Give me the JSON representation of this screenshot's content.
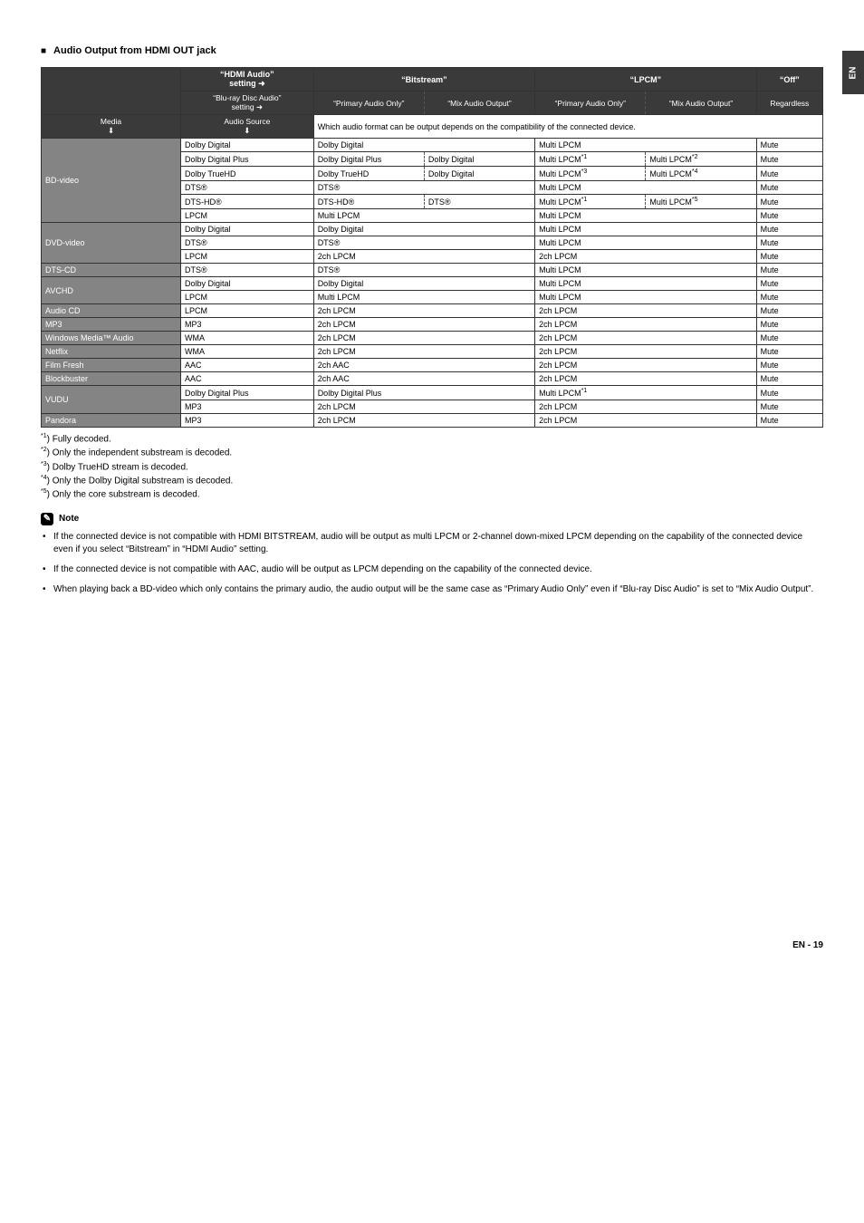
{
  "heading": "Audio Output from HDMI OUT jack",
  "sideTab": "EN",
  "cols": {
    "c0": "",
    "c1": "“HDMI Audio”",
    "c1b": "setting ➜",
    "c2": "“Bitstream”",
    "c3": "“LPCM”",
    "c4": "“Off”",
    "s1": "“Blu-ray Disc Audio”",
    "s1b": "setting ➜",
    "s2": "“Primary Audio Only”",
    "s3": "“Mix Audio Output”",
    "s4": "“Primary Audio Only”",
    "s5": "“Mix Audio Output”",
    "s6": "Regardless",
    "mA": "Media",
    "mB": "Audio Source",
    "mC": "Which audio format can be output depends on the compatibility of the connected device."
  },
  "groups": [
    {
      "label": "BD-video",
      "rows": [
        [
          "Dolby Digital",
          "Dolby Digital",
          null,
          "Multi LPCM",
          null,
          "Mute"
        ],
        [
          "Dolby Digital Plus",
          "Dolby Digital Plus",
          "Dolby Digital",
          "Multi LPCM*1",
          "Multi LPCM*2",
          "Mute"
        ],
        [
          "Dolby TrueHD",
          "Dolby TrueHD",
          "Dolby Digital",
          "Multi LPCM*3",
          "Multi LPCM*4",
          "Mute"
        ],
        [
          "DTS®",
          "DTS®",
          null,
          "Multi LPCM",
          null,
          "Mute"
        ],
        [
          "DTS-HD®",
          "DTS-HD®",
          "DTS®",
          "Multi LPCM*1",
          "Multi LPCM*5",
          "Mute"
        ],
        [
          "LPCM",
          "Multi LPCM",
          null,
          "Multi LPCM",
          null,
          "Mute"
        ]
      ]
    },
    {
      "label": "DVD-video",
      "rows": [
        [
          "Dolby Digital",
          "Dolby Digital",
          null,
          "Multi LPCM",
          null,
          "Mute"
        ],
        [
          "DTS®",
          "DTS®",
          null,
          "Multi LPCM",
          null,
          "Mute"
        ],
        [
          "LPCM",
          "2ch LPCM",
          null,
          "2ch LPCM",
          null,
          "Mute"
        ]
      ]
    },
    {
      "label": "DTS-CD",
      "rows": [
        [
          "DTS®",
          "DTS®",
          null,
          "Multi LPCM",
          null,
          "Mute"
        ]
      ]
    },
    {
      "label": "AVCHD",
      "rows": [
        [
          "Dolby Digital",
          "Dolby Digital",
          null,
          "Multi LPCM",
          null,
          "Mute"
        ],
        [
          "LPCM",
          "Multi LPCM",
          null,
          "Multi LPCM",
          null,
          "Mute"
        ]
      ]
    },
    {
      "label": "Audio CD",
      "rows": [
        [
          "LPCM",
          "2ch LPCM",
          null,
          "2ch LPCM",
          null,
          "Mute"
        ]
      ]
    },
    {
      "label": "MP3",
      "rows": [
        [
          "MP3",
          "2ch LPCM",
          null,
          "2ch LPCM",
          null,
          "Mute"
        ]
      ]
    },
    {
      "label": "Windows Media™ Audio",
      "rows": [
        [
          "WMA",
          "2ch LPCM",
          null,
          "2ch LPCM",
          null,
          "Mute"
        ]
      ]
    },
    {
      "label": "Netflix",
      "rows": [
        [
          "WMA",
          "2ch LPCM",
          null,
          "2ch LPCM",
          null,
          "Mute"
        ]
      ]
    },
    {
      "label": "Film Fresh",
      "rows": [
        [
          "AAC",
          "2ch AAC",
          null,
          "2ch LPCM",
          null,
          "Mute"
        ]
      ]
    },
    {
      "label": "Blockbuster",
      "rows": [
        [
          "AAC",
          "2ch AAC",
          null,
          "2ch LPCM",
          null,
          "Mute"
        ]
      ]
    },
    {
      "label": "VUDU",
      "rows": [
        [
          "Dolby Digital Plus",
          "Dolby Digital Plus",
          null,
          "Multi LPCM*1",
          null,
          "Mute"
        ],
        [
          "MP3",
          "2ch LPCM",
          null,
          "2ch LPCM",
          null,
          "Mute"
        ]
      ]
    },
    {
      "label": "Pandora",
      "rows": [
        [
          "MP3",
          "2ch LPCM",
          null,
          "2ch LPCM",
          null,
          "Mute"
        ]
      ]
    }
  ],
  "foot": [
    "*1) Fully decoded.",
    "*2) Only the independent substream is decoded.",
    "*3) Dolby TrueHD stream is decoded.",
    "*4) Only the Dolby Digital substream is decoded.",
    "*5) Only the core substream is decoded."
  ],
  "noteLabel": "Note",
  "bullets": [
    "If the connected device is not compatible with HDMI BITSTREAM, audio will be output as multi LPCM or 2-channel down-mixed LPCM depending on the capability of the connected device even if you select “Bitstream” in “HDMI Audio” setting.",
    "If the connected device is not compatible with AAC, audio will be output as LPCM depending on the capability of the connected device.",
    "When playing back a BD-video which only contains the primary audio, the audio output will be the same case as “Primary Audio Only” even if “Blu-ray Disc Audio” is set to “Mix Audio Output”."
  ],
  "pageFooter": "EN - 19",
  "widths": [
    126,
    120,
    100,
    100,
    100,
    100,
    60
  ]
}
